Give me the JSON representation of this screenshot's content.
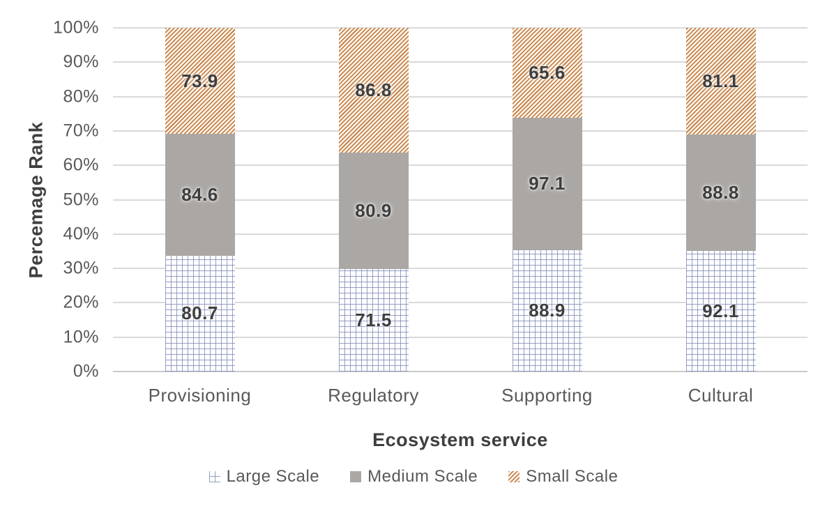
{
  "chart_data": {
    "type": "bar",
    "variant": "stacked-100-percent",
    "title": "",
    "xlabel": "Ecosystem service",
    "ylabel": "Percemage Rank",
    "categories": [
      "Provisioning",
      "Regulatory",
      "Supporting",
      "Cultural"
    ],
    "series": [
      {
        "name": "Large Scale",
        "values": [
          80.7,
          71.5,
          88.9,
          92.1
        ],
        "pattern": "grid",
        "line_color": "#7682af",
        "fill": "#fcfdff"
      },
      {
        "name": "Medium Scale",
        "values": [
          84.6,
          80.9,
          97.1,
          88.8
        ],
        "pattern": "solid",
        "fill": "#aba7a4"
      },
      {
        "name": "Small Scale",
        "values": [
          73.9,
          86.8,
          65.6,
          81.1
        ],
        "pattern": "diagonal-hatch",
        "line_color": "#c5824e",
        "fill": "#fdf7eb"
      }
    ],
    "y_ticks": [
      "0%",
      "10%",
      "20%",
      "30%",
      "40%",
      "50%",
      "60%",
      "70%",
      "80%",
      "90%",
      "100%"
    ],
    "ylim": [
      0,
      100
    ],
    "grid": "horizontal",
    "gridline_color": "#d9d9d9",
    "axis_text_color": "#595959",
    "data_label_color": "#3e3e3e",
    "legend_position": "bottom",
    "legend_items": [
      "Large Scale",
      "Medium Scale",
      "Small Scale"
    ]
  }
}
